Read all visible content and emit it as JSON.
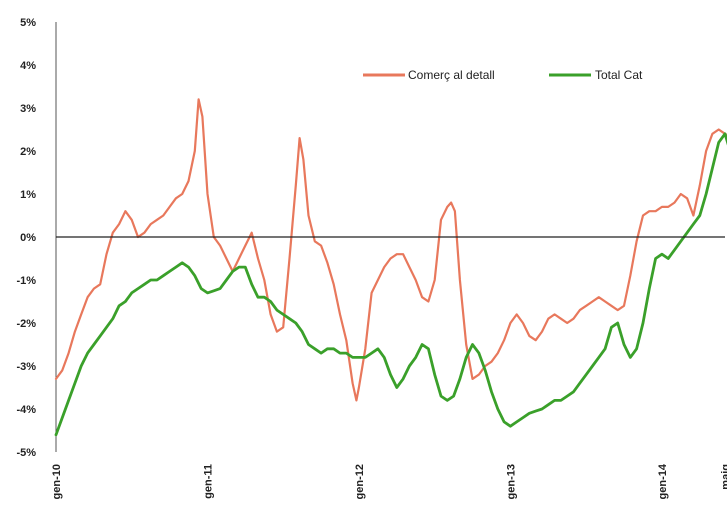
{
  "chart_data": {
    "type": "line",
    "title": "",
    "xlabel": "",
    "ylabel": "",
    "ylim": [
      -5,
      5
    ],
    "yticks": [
      -5,
      -4,
      -3,
      -2,
      -1,
      0,
      1,
      2,
      3,
      4,
      5
    ],
    "ytick_labels": [
      "-5%",
      "-4%",
      "-3%",
      "-2%",
      "-1%",
      "0%",
      "1%",
      "2%",
      "3%",
      "4%",
      "5%"
    ],
    "xlim": [
      0,
      53
    ],
    "xticks": [
      0,
      12,
      24,
      36,
      48,
      53
    ],
    "xtick_labels": [
      "gen-10",
      "gen-11",
      "gen-12",
      "gen-13",
      "gen-14",
      "maig"
    ],
    "legend_position": "top-right",
    "grid": false,
    "zero_line": true,
    "series": [
      {
        "name": "Comerç al detall",
        "color": "#e8785c",
        "points": [
          [
            0,
            -3.3
          ],
          [
            0.5,
            -3.1
          ],
          [
            1,
            -2.7
          ],
          [
            1.5,
            -2.2
          ],
          [
            2,
            -1.8
          ],
          [
            2.5,
            -1.4
          ],
          [
            3,
            -1.2
          ],
          [
            3.5,
            -1.1
          ],
          [
            4,
            -0.4
          ],
          [
            4.5,
            0.1
          ],
          [
            5,
            0.3
          ],
          [
            5.5,
            0.6
          ],
          [
            6,
            0.4
          ],
          [
            6.5,
            0.0
          ],
          [
            7,
            0.1
          ],
          [
            7.5,
            0.3
          ],
          [
            8,
            0.4
          ],
          [
            8.5,
            0.5
          ],
          [
            9,
            0.7
          ],
          [
            9.5,
            0.9
          ],
          [
            10,
            1.0
          ],
          [
            10.5,
            1.3
          ],
          [
            11,
            2.0
          ],
          [
            11.3,
            3.2
          ],
          [
            11.6,
            2.8
          ],
          [
            12,
            1.0
          ],
          [
            12.5,
            0.0
          ],
          [
            13,
            -0.2
          ],
          [
            13.5,
            -0.5
          ],
          [
            14,
            -0.8
          ],
          [
            14.5,
            -0.5
          ],
          [
            15,
            -0.2
          ],
          [
            15.5,
            0.1
          ],
          [
            16,
            -0.5
          ],
          [
            16.5,
            -1.0
          ],
          [
            17,
            -1.8
          ],
          [
            17.5,
            -2.2
          ],
          [
            18,
            -2.1
          ],
          [
            18.5,
            -0.5
          ],
          [
            19,
            1.2
          ],
          [
            19.3,
            2.3
          ],
          [
            19.6,
            1.8
          ],
          [
            20,
            0.5
          ],
          [
            20.5,
            -0.1
          ],
          [
            21,
            -0.2
          ],
          [
            21.5,
            -0.6
          ],
          [
            22,
            -1.1
          ],
          [
            22.5,
            -1.8
          ],
          [
            23,
            -2.4
          ],
          [
            23.5,
            -3.4
          ],
          [
            23.8,
            -3.8
          ],
          [
            24,
            -3.5
          ],
          [
            24.5,
            -2.6
          ],
          [
            25,
            -1.3
          ],
          [
            25.5,
            -1.0
          ],
          [
            26,
            -0.7
          ],
          [
            26.5,
            -0.5
          ],
          [
            27,
            -0.4
          ],
          [
            27.5,
            -0.4
          ],
          [
            28,
            -0.7
          ],
          [
            28.5,
            -1.0
          ],
          [
            29,
            -1.4
          ],
          [
            29.5,
            -1.5
          ],
          [
            30,
            -1.0
          ],
          [
            30.5,
            0.4
          ],
          [
            31,
            0.7
          ],
          [
            31.3,
            0.8
          ],
          [
            31.6,
            0.6
          ],
          [
            32,
            -1.0
          ],
          [
            32.5,
            -2.5
          ],
          [
            33,
            -3.3
          ],
          [
            33.5,
            -3.2
          ],
          [
            34,
            -3.0
          ],
          [
            34.5,
            -2.9
          ],
          [
            35,
            -2.7
          ],
          [
            35.5,
            -2.4
          ],
          [
            36,
            -2.0
          ],
          [
            36.5,
            -1.8
          ],
          [
            37,
            -2.0
          ],
          [
            37.5,
            -2.3
          ],
          [
            38,
            -2.4
          ],
          [
            38.5,
            -2.2
          ],
          [
            39,
            -1.9
          ],
          [
            39.5,
            -1.8
          ],
          [
            40,
            -1.9
          ],
          [
            40.5,
            -2.0
          ],
          [
            41,
            -1.9
          ],
          [
            41.5,
            -1.7
          ],
          [
            42,
            -1.6
          ],
          [
            42.5,
            -1.5
          ],
          [
            43,
            -1.4
          ],
          [
            43.5,
            -1.5
          ],
          [
            44,
            -1.6
          ],
          [
            44.5,
            -1.7
          ],
          [
            45,
            -1.6
          ],
          [
            45.5,
            -0.9
          ],
          [
            46,
            -0.1
          ],
          [
            46.5,
            0.5
          ],
          [
            47,
            0.6
          ],
          [
            47.5,
            0.6
          ],
          [
            48,
            0.7
          ],
          [
            48.5,
            0.7
          ],
          [
            49,
            0.8
          ],
          [
            49.5,
            1.0
          ],
          [
            50,
            0.9
          ],
          [
            50.5,
            0.5
          ],
          [
            51,
            1.2
          ],
          [
            51.5,
            2.0
          ],
          [
            52,
            2.4
          ],
          [
            52.5,
            2.5
          ],
          [
            53,
            2.4
          ],
          [
            53.5,
            2.3
          ]
        ]
      },
      {
        "name": "Total Cat",
        "color": "#3aa02a",
        "points": [
          [
            0,
            -4.6
          ],
          [
            0.5,
            -4.2
          ],
          [
            1,
            -3.8
          ],
          [
            1.5,
            -3.4
          ],
          [
            2,
            -3.0
          ],
          [
            2.5,
            -2.7
          ],
          [
            3,
            -2.5
          ],
          [
            3.5,
            -2.3
          ],
          [
            4,
            -2.1
          ],
          [
            4.5,
            -1.9
          ],
          [
            5,
            -1.6
          ],
          [
            5.5,
            -1.5
          ],
          [
            6,
            -1.3
          ],
          [
            6.5,
            -1.2
          ],
          [
            7,
            -1.1
          ],
          [
            7.5,
            -1.0
          ],
          [
            8,
            -1.0
          ],
          [
            8.5,
            -0.9
          ],
          [
            9,
            -0.8
          ],
          [
            9.5,
            -0.7
          ],
          [
            10,
            -0.6
          ],
          [
            10.5,
            -0.7
          ],
          [
            11,
            -0.9
          ],
          [
            11.5,
            -1.2
          ],
          [
            12,
            -1.3
          ],
          [
            12.5,
            -1.25
          ],
          [
            13,
            -1.2
          ],
          [
            13.5,
            -1.0
          ],
          [
            14,
            -0.8
          ],
          [
            14.5,
            -0.7
          ],
          [
            15,
            -0.7
          ],
          [
            15.5,
            -1.1
          ],
          [
            16,
            -1.4
          ],
          [
            16.5,
            -1.4
          ],
          [
            17,
            -1.5
          ],
          [
            17.5,
            -1.7
          ],
          [
            18,
            -1.8
          ],
          [
            18.5,
            -1.9
          ],
          [
            19,
            -2.0
          ],
          [
            19.5,
            -2.2
          ],
          [
            20,
            -2.5
          ],
          [
            20.5,
            -2.6
          ],
          [
            21,
            -2.7
          ],
          [
            21.5,
            -2.6
          ],
          [
            22,
            -2.6
          ],
          [
            22.5,
            -2.7
          ],
          [
            23,
            -2.7
          ],
          [
            23.5,
            -2.8
          ],
          [
            24,
            -2.8
          ],
          [
            24.5,
            -2.8
          ],
          [
            25,
            -2.7
          ],
          [
            25.5,
            -2.6
          ],
          [
            26,
            -2.8
          ],
          [
            26.5,
            -3.2
          ],
          [
            27,
            -3.5
          ],
          [
            27.5,
            -3.3
          ],
          [
            28,
            -3.0
          ],
          [
            28.5,
            -2.8
          ],
          [
            29,
            -2.5
          ],
          [
            29.5,
            -2.6
          ],
          [
            30,
            -3.2
          ],
          [
            30.5,
            -3.7
          ],
          [
            31,
            -3.8
          ],
          [
            31.5,
            -3.7
          ],
          [
            32,
            -3.3
          ],
          [
            32.5,
            -2.8
          ],
          [
            33,
            -2.5
          ],
          [
            33.5,
            -2.7
          ],
          [
            34,
            -3.1
          ],
          [
            34.5,
            -3.6
          ],
          [
            35,
            -4.0
          ],
          [
            35.5,
            -4.3
          ],
          [
            36,
            -4.4
          ],
          [
            36.5,
            -4.3
          ],
          [
            37,
            -4.2
          ],
          [
            37.5,
            -4.1
          ],
          [
            38,
            -4.05
          ],
          [
            38.5,
            -4.0
          ],
          [
            39,
            -3.9
          ],
          [
            39.5,
            -3.8
          ],
          [
            40,
            -3.8
          ],
          [
            40.5,
            -3.7
          ],
          [
            41,
            -3.6
          ],
          [
            41.5,
            -3.4
          ],
          [
            42,
            -3.2
          ],
          [
            42.5,
            -3.0
          ],
          [
            43,
            -2.8
          ],
          [
            43.5,
            -2.6
          ],
          [
            44,
            -2.1
          ],
          [
            44.5,
            -2.0
          ],
          [
            45,
            -2.5
          ],
          [
            45.5,
            -2.8
          ],
          [
            46,
            -2.6
          ],
          [
            46.5,
            -2.0
          ],
          [
            47,
            -1.2
          ],
          [
            47.5,
            -0.5
          ],
          [
            48,
            -0.4
          ],
          [
            48.5,
            -0.5
          ],
          [
            49,
            -0.3
          ],
          [
            49.5,
            -0.1
          ],
          [
            50,
            0.1
          ],
          [
            50.5,
            0.3
          ],
          [
            51,
            0.5
          ],
          [
            51.5,
            1.0
          ],
          [
            52,
            1.6
          ],
          [
            52.5,
            2.2
          ],
          [
            53,
            2.4
          ],
          [
            53.3,
            2.1
          ],
          [
            53.7,
            1.6
          ]
        ]
      }
    ]
  }
}
